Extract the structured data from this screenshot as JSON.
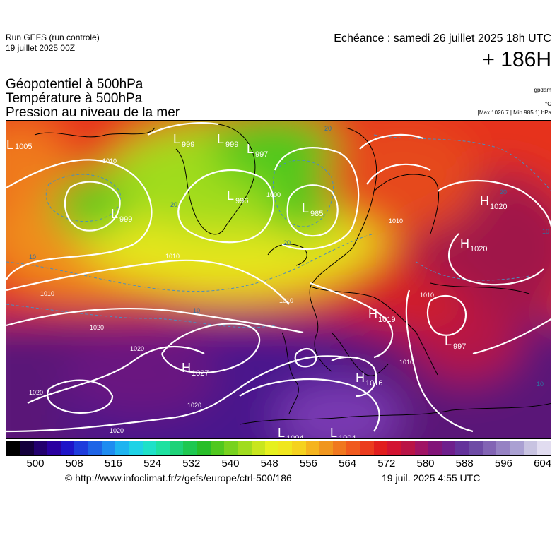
{
  "header": {
    "run_title": "Run GEFS (run controle)",
    "run_date": "19 juillet 2025 00Z",
    "valid_time": "Echéance : samedi 26 juillet 2025 18h UTC",
    "lead": "+ 186H"
  },
  "titles": {
    "line1": "Géopotentiel à 500hPa",
    "line2": "Température à 500hPa",
    "line3": "Pression au niveau de la mer"
  },
  "units": {
    "geopotential": "gpdam",
    "temperature": "°C",
    "pressure": "[Max 1026.7 | Min 985.1] hPa"
  },
  "map": {
    "pressure_centers": [
      {
        "type": "L",
        "value": "1005"
      },
      {
        "type": "L",
        "value": "999"
      },
      {
        "type": "L",
        "value": "999"
      },
      {
        "type": "L",
        "value": "997"
      },
      {
        "type": "L",
        "value": "985"
      },
      {
        "type": "L",
        "value": "996"
      },
      {
        "type": "L",
        "value": "999"
      },
      {
        "type": "H",
        "value": "1020"
      },
      {
        "type": "H",
        "value": "1020"
      },
      {
        "type": "H",
        "value": "1019"
      },
      {
        "type": "H",
        "value": "1027"
      },
      {
        "type": "H",
        "value": "1016"
      },
      {
        "type": "L",
        "value": "997"
      },
      {
        "type": "L",
        "value": "1004"
      },
      {
        "type": "L",
        "value": "1004"
      }
    ],
    "isobar_labels": [
      "1010",
      "1010",
      "1010",
      "1020",
      "1020",
      "1020",
      "1020",
      "1020",
      "1010",
      "1010",
      "1000",
      "1010",
      "1010"
    ],
    "temperature_labels": [
      "20",
      "20",
      "20",
      "10",
      "10",
      "10",
      "10",
      "20"
    ]
  },
  "colorbar": {
    "labels": [
      "500",
      "508",
      "516",
      "524",
      "532",
      "540",
      "548",
      "556",
      "564",
      "572",
      "580",
      "588",
      "596",
      "604"
    ],
    "colors": [
      "#000000",
      "#14003c",
      "#23006e",
      "#2a00a0",
      "#1e14c8",
      "#1e3cdc",
      "#1e64e6",
      "#1e8cf0",
      "#1eb4f0",
      "#1ed2e6",
      "#1ee1c8",
      "#1ee1a0",
      "#1ed278",
      "#1ec850",
      "#28be28",
      "#50c81e",
      "#78d21e",
      "#a0dc1e",
      "#c8e61e",
      "#e6f01e",
      "#f0e61e",
      "#f5d21e",
      "#f5b41e",
      "#f0961e",
      "#f0781e",
      "#f05a1e",
      "#eb3c1e",
      "#e11e1e",
      "#d21432",
      "#b91446",
      "#a01464",
      "#821478",
      "#6e1e8c",
      "#64329b",
      "#6e4ba5",
      "#8264b4",
      "#9682c3",
      "#aaa0d2",
      "#c8c3e1",
      "#e1dcf0"
    ]
  },
  "footer": {
    "url": "© http://www.infoclimat.fr/z/gefs/europe/ctrl-500/186",
    "date": "19 juil. 2025  4:55 UTC"
  }
}
